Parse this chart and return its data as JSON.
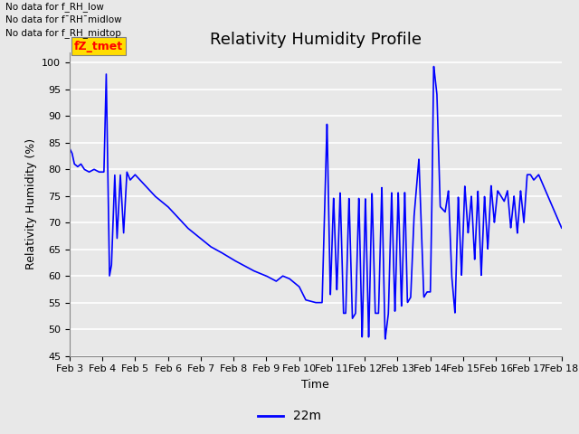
{
  "title": "Relativity Humidity Profile",
  "xlabel": "Time",
  "ylabel": "Relativity Humidity (%)",
  "ylim": [
    45,
    102
  ],
  "yticks": [
    45,
    50,
    55,
    60,
    65,
    70,
    75,
    80,
    85,
    90,
    95,
    100
  ],
  "line_color": "blue",
  "line_label": "22m",
  "background_color": "#e8e8e8",
  "no_data_texts": [
    "No data for f_RH_low",
    "No data for f¯RH¯midlow",
    "No data for f_RH_midtop"
  ],
  "legend_box_text": "fZ_tmet",
  "legend_box_color": "#ffdd00",
  "legend_box_text_color": "red",
  "x_tick_labels": [
    "Feb 3",
    "Feb 4",
    "Feb 5",
    "Feb 6",
    "Feb 7",
    "Feb 8",
    "Feb 9",
    "Feb 10",
    "Feb 11",
    "Feb 12",
    "Feb 13",
    "Feb 14",
    "Feb 15",
    "Feb 16",
    "Feb 17",
    "Feb 18"
  ],
  "title_fontsize": 13,
  "axis_fontsize": 9,
  "tick_fontsize": 8
}
